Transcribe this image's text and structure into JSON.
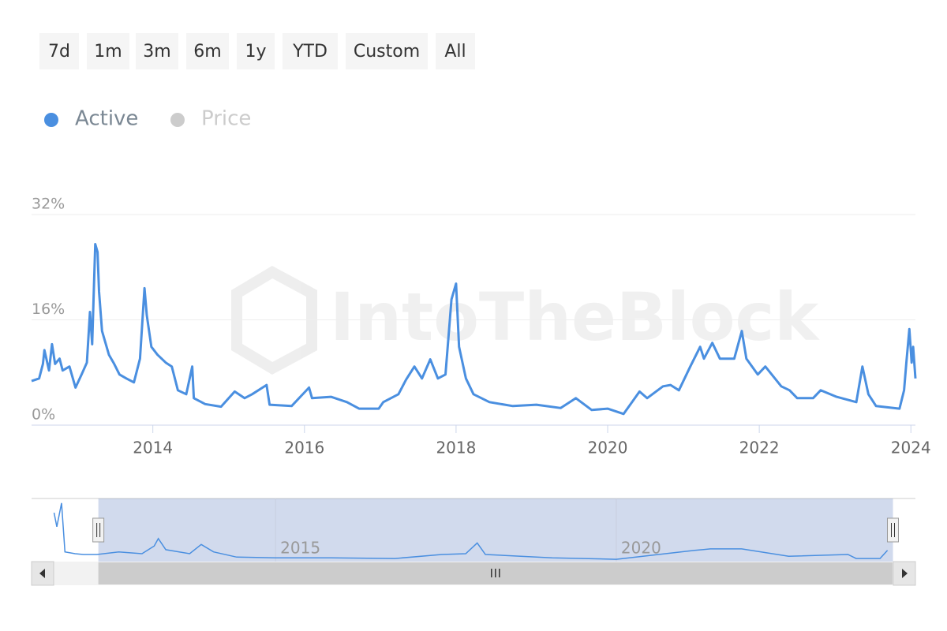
{
  "range_buttons": [
    "7d",
    "1m",
    "3m",
    "6m",
    "1y",
    "YTD",
    "Custom",
    "All"
  ],
  "watermark": "IntoTheBlock",
  "chart_data": {
    "type": "line",
    "series": [
      {
        "name": "Active",
        "color": "#4a8fe0",
        "visible": true,
        "values": [
          6.7,
          7.1,
          9.3,
          11.4,
          8.3,
          12.3,
          9.3,
          10.1,
          8.3,
          8.9,
          5.7,
          7.7,
          9.5,
          17.2,
          12.3,
          27.5,
          26.3,
          20.3,
          14.3,
          10.7,
          9.3,
          7.7,
          7.1,
          6.5,
          10.1,
          20.8,
          16.7,
          11.9,
          10.7,
          9.5,
          8.9,
          5.3,
          4.7,
          8.9,
          4.1,
          3.2,
          2.8,
          5.1,
          4.1,
          4.7,
          6.1,
          3.1,
          2.9,
          5.7,
          4.1,
          4.3,
          3.5,
          2.5,
          2.5,
          3.5,
          4.7,
          6.9,
          8.9,
          7.1,
          10.0,
          7.1,
          7.7,
          19.1,
          21.5,
          11.9,
          7.1,
          4.7,
          3.5,
          2.9,
          3.1,
          2.6,
          4.1,
          2.3,
          2.5,
          1.7,
          5.1,
          4.1,
          5.9,
          6.1,
          5.3,
          8.9,
          11.9,
          10.1,
          12.5,
          10.1,
          10.1,
          14.3,
          10.1,
          7.7,
          8.9,
          5.9,
          5.3,
          4.1,
          4.1,
          5.3,
          4.3,
          3.5,
          8.9,
          4.7,
          2.9,
          2.5,
          5.3,
          9.5,
          14.6,
          9.5,
          11.9,
          7.1
        ]
      },
      {
        "name": "Price",
        "color": "#cccccc",
        "visible": false
      }
    ],
    "x": [
      2012.4,
      2012.5,
      2012.55,
      2012.57,
      2012.63,
      2012.67,
      2012.71,
      2012.77,
      2012.81,
      2012.9,
      2012.98,
      2013.06,
      2013.13,
      2013.17,
      2013.2,
      2013.24,
      2013.27,
      2013.29,
      2013.33,
      2013.42,
      2013.49,
      2013.56,
      2013.65,
      2013.75,
      2013.83,
      2013.89,
      2013.92,
      2013.98,
      2014.06,
      2014.17,
      2014.25,
      2014.33,
      2014.44,
      2014.52,
      2014.54,
      2014.69,
      2014.9,
      2015.08,
      2015.21,
      2015.31,
      2015.5,
      2015.54,
      2015.83,
      2016.06,
      2016.1,
      2016.35,
      2016.56,
      2016.72,
      2016.98,
      2017.04,
      2017.24,
      2017.34,
      2017.45,
      2017.55,
      2017.66,
      2017.76,
      2017.86,
      2017.94,
      2018.0,
      2018.04,
      2018.13,
      2018.23,
      2018.44,
      2018.75,
      2019.06,
      2019.38,
      2019.58,
      2019.79,
      2020.0,
      2020.21,
      2020.42,
      2020.52,
      2020.73,
      2020.83,
      2020.94,
      2021.09,
      2021.22,
      2021.27,
      2021.38,
      2021.48,
      2021.67,
      2021.77,
      2021.83,
      2021.98,
      2022.08,
      2022.29,
      2022.4,
      2022.5,
      2022.71,
      2022.81,
      2023.02,
      2023.28,
      2023.36,
      2023.44,
      2023.54,
      2023.85,
      2023.91,
      2023.94,
      2023.98,
      2024.01,
      2024.03,
      2024.06
    ],
    "xlim": [
      2012.4,
      2024.06
    ],
    "xticks": [
      2014,
      2016,
      2018,
      2020,
      2022,
      2024
    ],
    "ylim": [
      0,
      32
    ],
    "yticks": [
      {
        "value": 0,
        "label": "0%"
      },
      {
        "value": 16,
        "label": "16%"
      },
      {
        "value": 32,
        "label": "32%"
      }
    ],
    "grid": true,
    "navigator": {
      "x": [
        2011.75,
        2011.79,
        2011.86,
        2011.91,
        2012.06,
        2012.18,
        2012.38,
        2012.7,
        2013.04,
        2013.22,
        2013.28,
        2013.39,
        2013.74,
        2013.91,
        2014.09,
        2014.43,
        2015.0,
        2015.82,
        2016.75,
        2017.44,
        2017.79,
        2017.96,
        2018.08,
        2019.06,
        2020.0,
        2021.15,
        2021.38,
        2021.84,
        2022.53,
        2023.4,
        2023.52,
        2023.87,
        2023.98
      ],
      "values": [
        64,
        45,
        77,
        11,
        8.5,
        7.5,
        7.5,
        11,
        8.5,
        19,
        29,
        14,
        8.5,
        21,
        11,
        4,
        3,
        3,
        2,
        7.5,
        8.5,
        23,
        7.5,
        3,
        1,
        13,
        15,
        15,
        5,
        7.5,
        2,
        2,
        13
      ],
      "xlim": [
        2011.42,
        2024.39
      ],
      "ylim": [
        0,
        80
      ],
      "xticks": [
        2015,
        2020
      ]
    }
  }
}
